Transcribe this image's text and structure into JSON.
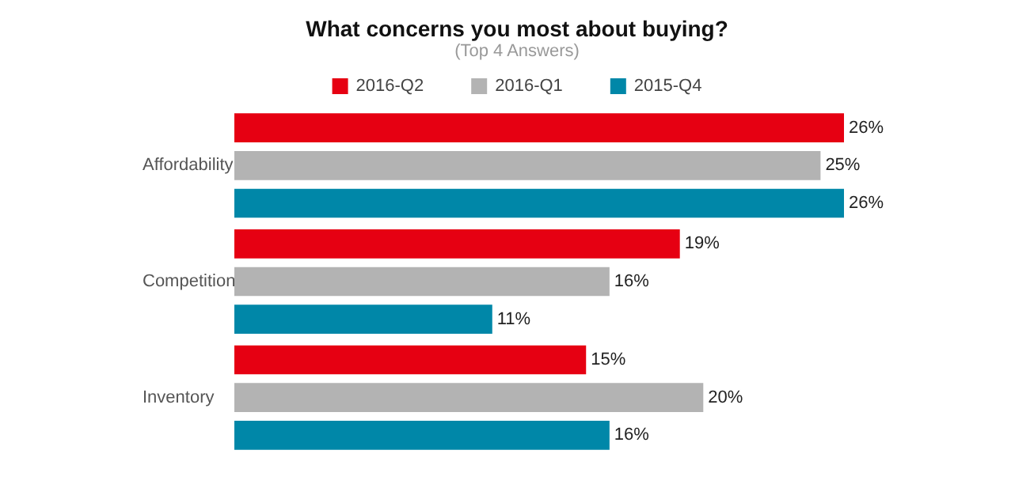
{
  "chart_data": {
    "type": "bar",
    "orientation": "horizontal",
    "title": "What concerns you most about buying?",
    "subtitle": "(Top 4 Answers)",
    "categories": [
      "Affordability",
      "Competition",
      "Inventory"
    ],
    "series": [
      {
        "name": "2016-Q2",
        "color": "#e60012",
        "values": [
          26,
          19,
          15
        ],
        "value_labels": [
          "26%",
          "19%",
          "15%"
        ]
      },
      {
        "name": "2016-Q1",
        "color": "#b3b3b3",
        "values": [
          25,
          16,
          20
        ],
        "value_labels": [
          "25%",
          "16%",
          "20%"
        ]
      },
      {
        "name": "2015-Q4",
        "color": "#0087a8",
        "values": [
          26,
          11,
          16
        ],
        "value_labels": [
          "26%",
          "11%",
          "16%"
        ]
      }
    ],
    "legend": "top",
    "grid": false
  }
}
